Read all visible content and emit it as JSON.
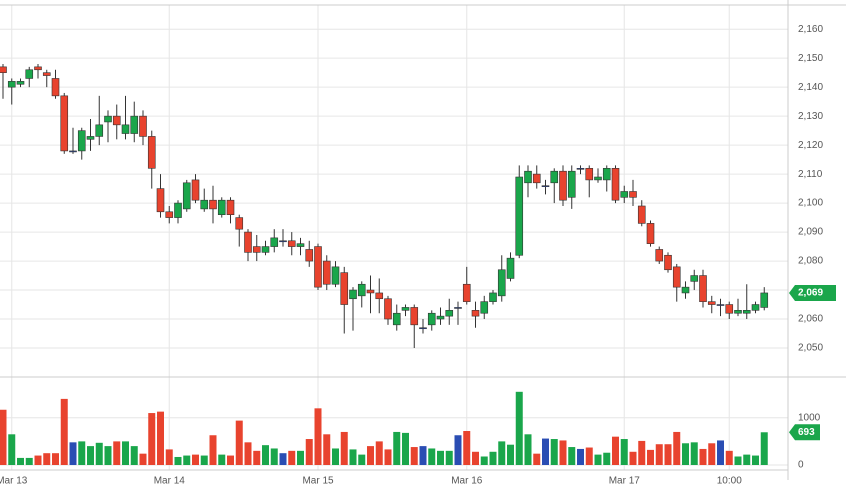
{
  "chart_data": {
    "type": "candlestick",
    "categories": [
      null,
      "Mar 13",
      null,
      null,
      null,
      null,
      null,
      null,
      null,
      null,
      null,
      null,
      null,
      null,
      null,
      null,
      null,
      null,
      null,
      "Mar 14",
      null,
      null,
      null,
      null,
      null,
      null,
      null,
      null,
      null,
      null,
      null,
      null,
      null,
      null,
      null,
      null,
      "Mar 15",
      null,
      null,
      null,
      null,
      null,
      null,
      null,
      null,
      null,
      null,
      null,
      null,
      null,
      null,
      null,
      null,
      "Mar 16",
      null,
      null,
      null,
      null,
      null,
      null,
      null,
      null,
      null,
      null,
      null,
      null,
      null,
      null,
      null,
      null,
      null,
      "Mar 17",
      null,
      null,
      null,
      null,
      null,
      null,
      null,
      null,
      null,
      null,
      null,
      "10:00",
      null,
      null,
      null,
      null
    ],
    "open": [
      2147,
      2140,
      2141,
      2143,
      2147,
      2145,
      2143,
      2137,
      2118,
      2118,
      2122,
      2123,
      2128,
      2130,
      2124,
      2124,
      2130,
      2123,
      2105,
      2097,
      2095,
      2098,
      2108,
      2098,
      2101,
      2096,
      2101,
      2095,
      2090,
      2085,
      2083,
      2085,
      2087,
      2087,
      2085,
      2084,
      2085,
      2080,
      2072,
      2076,
      2067,
      2068,
      2070,
      2069,
      2067,
      2058,
      2063,
      2064,
      2057,
      2058,
      2060,
      2061,
      2064,
      2072,
      2063,
      2062,
      2066,
      2068,
      2074,
      2082,
      2107,
      2110,
      2106,
      2107,
      2111,
      2102,
      2112,
      2112,
      2108,
      2108,
      2112,
      2102,
      2104,
      2099,
      2093,
      2084,
      2082,
      2078,
      2069,
      2073,
      2075,
      2066,
      2065,
      2065,
      2062,
      2062,
      2063,
      2064
    ],
    "high": [
      2148,
      2143,
      2143,
      2147,
      2148,
      2146,
      2146,
      2138,
      2126,
      2126,
      2129,
      2137,
      2132,
      2134,
      2137,
      2135,
      2132,
      2125,
      2110,
      2099,
      2101,
      2108,
      2110,
      2105,
      2106,
      2102,
      2102,
      2096,
      2091,
      2089,
      2087,
      2091,
      2091,
      2090,
      2088,
      2087,
      2086,
      2082,
      2080,
      2078,
      2071,
      2073,
      2075,
      2074,
      2068,
      2065,
      2065,
      2065,
      2060,
      2063,
      2064,
      2067,
      2066,
      2078,
      2066,
      2068,
      2070,
      2082,
      2083,
      2113,
      2113,
      2113,
      2108,
      2112,
      2113,
      2113,
      2113,
      2113,
      2112,
      2113,
      2113,
      2106,
      2108,
      2101,
      2094,
      2085,
      2083,
      2079,
      2073,
      2077,
      2077,
      2068,
      2067,
      2066,
      2067,
      2072,
      2066,
      2071
    ],
    "low": [
      2136,
      2134,
      2140,
      2140,
      2143,
      2140,
      2136,
      2117,
      2117,
      2115,
      2118,
      2120,
      2121,
      2122,
      2122,
      2121,
      2120,
      2105,
      2095,
      2093,
      2093,
      2097,
      2100,
      2097,
      2093,
      2095,
      2093,
      2085,
      2080,
      2080,
      2082,
      2083,
      2085,
      2082,
      2082,
      2078,
      2070,
      2070,
      2071,
      2055,
      2056,
      2064,
      2062,
      2062,
      2058,
      2056,
      2061,
      2050,
      2055,
      2056,
      2058,
      2058,
      2058,
      2065,
      2057,
      2060,
      2065,
      2066,
      2073,
      2081,
      2102,
      2105,
      2103,
      2100,
      2099,
      2098,
      2110,
      2102,
      2107,
      2104,
      2100,
      2100,
      2099,
      2092,
      2085,
      2079,
      2076,
      2066,
      2067,
      2070,
      2064,
      2062,
      2061,
      2060,
      2061,
      2060,
      2062,
      2063
    ],
    "close": [
      2145,
      2142,
      2142,
      2146,
      2146,
      2144,
      2137,
      2118,
      2118,
      2125,
      2123,
      2127,
      2130,
      2127,
      2127,
      2130,
      2123,
      2112,
      2097,
      2095,
      2100,
      2107,
      2101,
      2101,
      2098,
      2101,
      2096,
      2091,
      2083,
      2083,
      2085,
      2088,
      2087,
      2085,
      2086,
      2080,
      2071,
      2072,
      2078,
      2065,
      2070,
      2072,
      2069,
      2067,
      2060,
      2062,
      2064,
      2058,
      2057,
      2062,
      2061,
      2063,
      2064,
      2066,
      2061,
      2066,
      2069,
      2077,
      2081,
      2109,
      2111,
      2107,
      2106,
      2111,
      2101,
      2111,
      2112,
      2108,
      2109,
      2112,
      2101,
      2104,
      2102,
      2093,
      2086,
      2080,
      2077,
      2071,
      2071,
      2075,
      2066,
      2065,
      2065,
      2062,
      2063,
      2063,
      2065,
      2069
    ],
    "volume": [
      1170,
      650,
      150,
      150,
      200,
      250,
      250,
      1400,
      480,
      500,
      400,
      470,
      400,
      500,
      500,
      400,
      240,
      1100,
      1130,
      330,
      170,
      200,
      220,
      200,
      630,
      220,
      200,
      940,
      480,
      300,
      420,
      350,
      250,
      300,
      300,
      550,
      1200,
      650,
      350,
      700,
      330,
      220,
      400,
      500,
      330,
      700,
      680,
      380,
      400,
      350,
      300,
      300,
      630,
      720,
      280,
      180,
      280,
      500,
      430,
      1550,
      650,
      240,
      560,
      550,
      520,
      380,
      340,
      370,
      220,
      260,
      600,
      550,
      280,
      510,
      320,
      440,
      440,
      700,
      460,
      480,
      340,
      460,
      520,
      300,
      180,
      220,
      200,
      693
    ],
    "ylim": [
      2040,
      2168
    ],
    "yticks": [
      {
        "value": 2050,
        "label": "2,050"
      },
      {
        "value": 2060,
        "label": "2,060"
      },
      {
        "value": 2070,
        "label": "2,070"
      },
      {
        "value": 2080,
        "label": "2,080"
      },
      {
        "value": 2090,
        "label": "2,090"
      },
      {
        "value": 2100,
        "label": "2,100"
      },
      {
        "value": 2110,
        "label": "2,110"
      },
      {
        "value": 2120,
        "label": "2,120"
      },
      {
        "value": 2130,
        "label": "2,130"
      },
      {
        "value": 2140,
        "label": "2,140"
      },
      {
        "value": 2150,
        "label": "2,150"
      },
      {
        "value": 2160,
        "label": "2,160"
      }
    ],
    "volume_ylim": [
      0,
      1800
    ],
    "volume_yticks": [
      0,
      1000
    ],
    "last_price_label": "2,069",
    "last_volume_label": "693",
    "up_color": "#1aa64b",
    "down_color": "#e8432e",
    "flat_color": "#2a4db3",
    "grid": true
  }
}
